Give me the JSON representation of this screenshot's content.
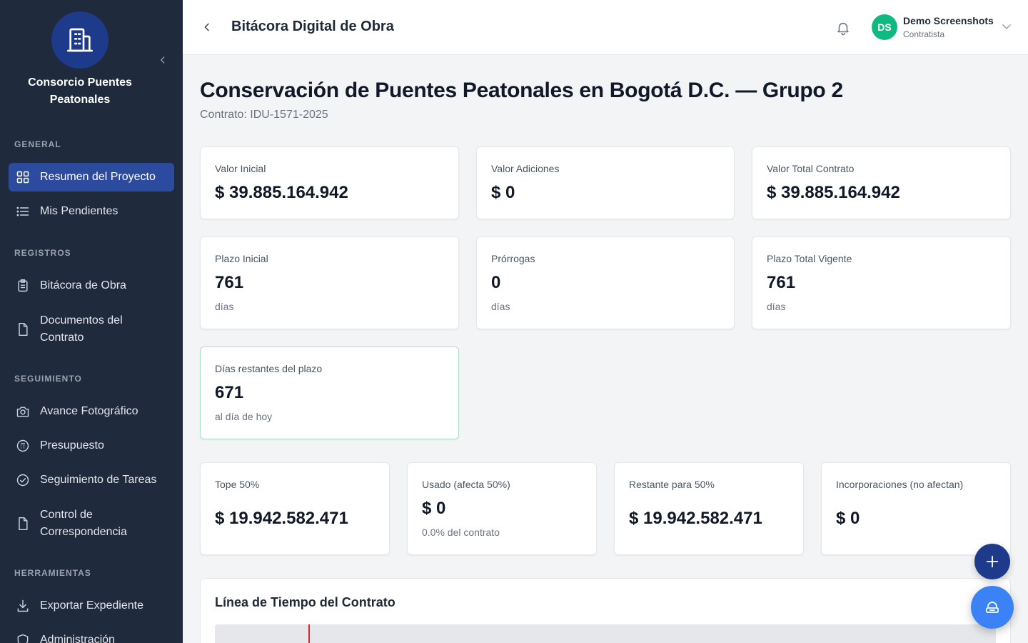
{
  "sidebar": {
    "org_name": "Consorcio Puentes Peatonales",
    "logo_icon": "building-icon",
    "sections": {
      "general": "GENERAL",
      "registros": "REGISTROS",
      "seguimiento": "SEGUIMIENTO",
      "herramientas": "HERRAMIENTAS"
    },
    "items": {
      "resumen": "Resumen del Proyecto",
      "pendientes": "Mis Pendientes",
      "bitacora": "Bitácora de Obra",
      "documentos": "Documentos del Contrato",
      "avance": "Avance Fotográfico",
      "presupuesto": "Presupuesto",
      "tareas": "Seguimiento de Tareas",
      "correspondencia": "Control de Correspondencia",
      "exportar": "Exportar Expediente",
      "administracion": "Administración"
    },
    "active_item": "resumen",
    "colors": {
      "background": "#1f2a3c",
      "active": "#2c4a9e"
    }
  },
  "header": {
    "title": "Bitácora Digital de Obra",
    "user": {
      "initials": "DS",
      "name": "Demo Screenshots",
      "role": "Contratista",
      "avatar_color": "#10b981"
    }
  },
  "main": {
    "project_title": "Conservación de Puentes Peatonales en Bogotá D.C. — Grupo 2",
    "contract": "Contrato: IDU-1571-2025",
    "cards": {
      "valor_inicial": {
        "label": "Valor Inicial",
        "value": "$ 39.885.164.942"
      },
      "valor_adiciones": {
        "label": "Valor Adiciones",
        "value": "$ 0"
      },
      "valor_total": {
        "label": "Valor Total Contrato",
        "value": "$ 39.885.164.942"
      },
      "plazo_inicial": {
        "label": "Plazo Inicial",
        "value": "761",
        "unit": "días"
      },
      "prorrogas": {
        "label": "Prórrogas",
        "value": "0",
        "unit": "días"
      },
      "plazo_total": {
        "label": "Plazo Total Vigente",
        "value": "761",
        "unit": "días"
      },
      "dias_restantes": {
        "label": "Días restantes del plazo",
        "value": "671",
        "unit": "al día de hoy"
      },
      "tope": {
        "label": "Tope 50%",
        "value": "$ 19.942.582.471"
      },
      "usado": {
        "label": "Usado (afecta 50%)",
        "value": "$ 0",
        "unit": "0.0% del contrato"
      },
      "restante": {
        "label": "Restante para 50%",
        "value": "$ 19.942.582.471"
      },
      "incorporaciones": {
        "label": "Incorporaciones (no afectan)",
        "value": "$ 0"
      }
    },
    "timeline": {
      "title": "Línea de Tiempo del Contrato"
    }
  },
  "fabs": {
    "plus_icon": "plus-icon",
    "assistant_icon": "assistant-icon"
  }
}
